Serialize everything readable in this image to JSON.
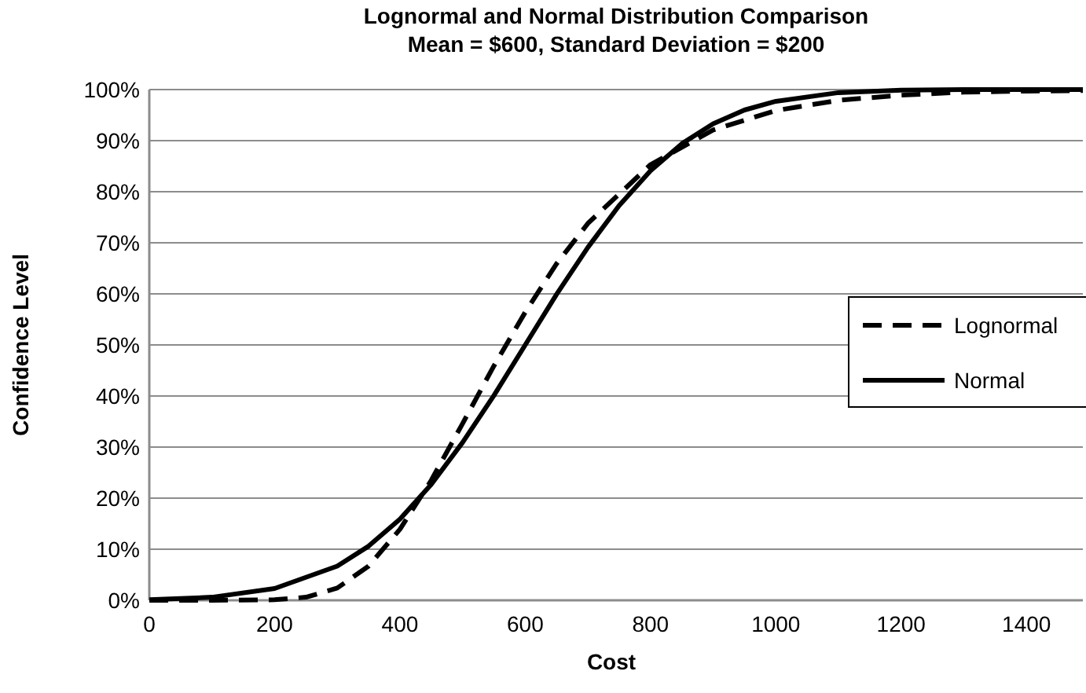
{
  "chart_data": {
    "type": "line",
    "title": "Lognormal and Normal Distribution Comparison",
    "subtitle": "Mean = $600, Standard Deviation = $200",
    "xlabel": "Cost",
    "ylabel": "Confidence Level",
    "xlim": [
      0,
      1490
    ],
    "xticks": [
      0,
      200,
      400,
      600,
      800,
      1000,
      1200,
      1400
    ],
    "ylim": [
      0,
      100
    ],
    "yticks": [
      {
        "value": 0,
        "label": "0%"
      },
      {
        "value": 10,
        "label": "10%"
      },
      {
        "value": 20,
        "label": "20%"
      },
      {
        "value": 30,
        "label": "30%"
      },
      {
        "value": 40,
        "label": "40%"
      },
      {
        "value": 50,
        "label": "50%"
      },
      {
        "value": 60,
        "label": "60%"
      },
      {
        "value": 70,
        "label": "70%"
      },
      {
        "value": 80,
        "label": "80%"
      },
      {
        "value": 90,
        "label": "90%"
      },
      {
        "value": 100,
        "label": "100%"
      }
    ],
    "grid": "y",
    "legend": "right",
    "marker": "none",
    "series": [
      {
        "name": "Lognormal",
        "color": "#000000",
        "line_style": "dashed",
        "x": [
          0,
          100,
          200,
          250,
          300,
          350,
          400,
          450,
          500,
          550,
          600,
          650,
          700,
          800,
          900,
          1000,
          1100,
          1200,
          1300,
          1400,
          1490
        ],
        "values": [
          0,
          0,
          0.1,
          0.6,
          2.4,
          6.7,
          13.9,
          23.5,
          34.6,
          45.9,
          56.4,
          65.9,
          73.8,
          85.3,
          92.1,
          95.9,
          97.9,
          98.9,
          99.5,
          99.7,
          99.8
        ]
      },
      {
        "name": "Normal",
        "color": "#000000",
        "line_style": "solid",
        "x": [
          0,
          100,
          200,
          300,
          350,
          400,
          450,
          500,
          550,
          600,
          650,
          700,
          750,
          800,
          850,
          900,
          950,
          1000,
          1100,
          1200,
          1300,
          1490
        ],
        "values": [
          0.1,
          0.6,
          2.3,
          6.7,
          10.6,
          15.9,
          22.7,
          30.9,
          40.1,
          50,
          59.9,
          69.1,
          77.3,
          84.1,
          89.4,
          93.3,
          96,
          97.7,
          99.4,
          99.9,
          100,
          100
        ]
      }
    ]
  }
}
